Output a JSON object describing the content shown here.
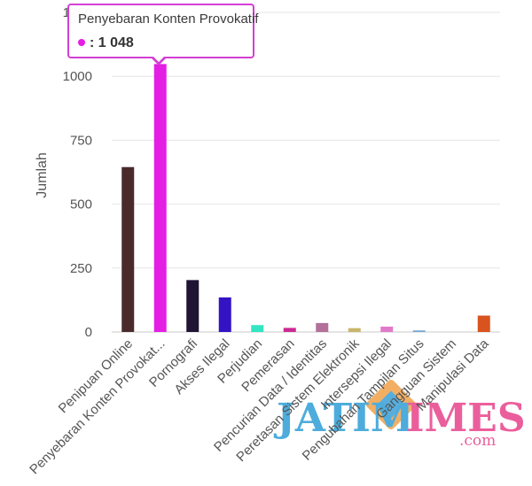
{
  "chart_data": {
    "type": "bar",
    "title": "",
    "xlabel": "",
    "ylabel": "Jumlah",
    "ylim": [
      0,
      1250
    ],
    "yticks": [
      "0",
      "250",
      "500",
      "750",
      "1000",
      "1250"
    ],
    "grid": "horizontal",
    "legend": "none",
    "categories": [
      "Penipuan Online",
      "Penyebaran Konten Provokat...",
      "Pornografi",
      "Akses Ilegal",
      "Perjudian",
      "Pemerasan",
      "Pencurian Data / Identitas",
      "Peretasan Sistem Elektronik",
      "Intersepsi Ilegal",
      "Pengubahan Tampilan Situs",
      "Gangguan Sistem",
      "Manipulasi Data"
    ],
    "values": [
      645,
      1048,
      203,
      135,
      27,
      16,
      35,
      15,
      21,
      6,
      0,
      64
    ],
    "colors": [
      "#4a2a2a",
      "#e41ee4",
      "#1f1433",
      "#3313c4",
      "#33e5c2",
      "#cc2a92",
      "#b3709b",
      "#c9b56a",
      "#e07ac9",
      "#74a7d3",
      "#b0b0b0",
      "#d9531e"
    ]
  },
  "tooltip": {
    "title": "Penyebaran Konten Provokatif",
    "value_text": ": 1 048",
    "color": "#e41ee4"
  },
  "watermark": {
    "text_left": "JATIM",
    "text_right": "IMES",
    "suffix": ".com"
  }
}
